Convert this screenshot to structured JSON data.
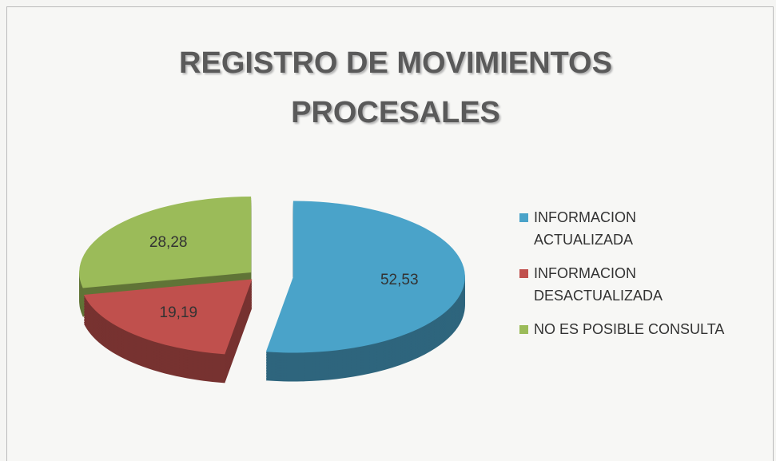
{
  "chart_data": {
    "type": "pie",
    "title": "REGISTRO DE MOVIMIENTOS PROCESALES",
    "categories": [
      "INFORMACION ACTUALIZADA",
      "INFORMACION DESACTUALIZADA",
      "NO ES POSIBLE CONSULTA"
    ],
    "values": [
      52.53,
      19.19,
      28.28
    ],
    "value_labels": [
      "52,53",
      "19,19",
      "28,28"
    ],
    "colors": [
      "#4aa3c9",
      "#c0504d",
      "#9bbb59"
    ],
    "legend": "right"
  }
}
